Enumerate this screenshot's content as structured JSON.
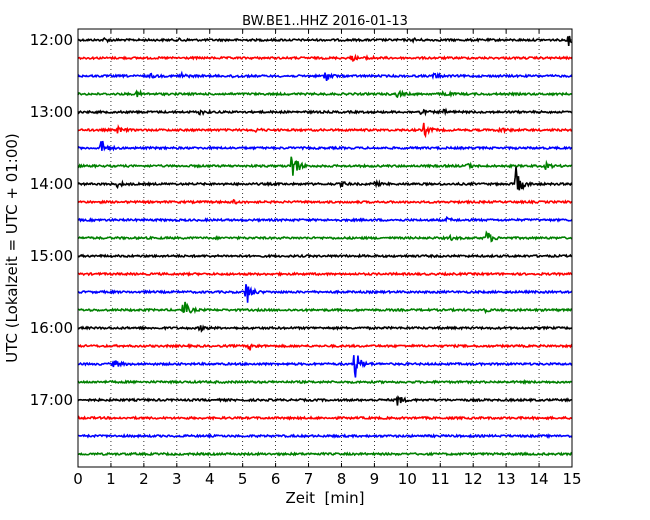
{
  "chart_data": {
    "type": "line",
    "title": "BW.BE1..HHZ 2016-01-13",
    "xlabel": "Zeit  [min]",
    "ylabel": "UTC (Lokalzeit = UTC + 01:00)",
    "xlim": [
      0,
      15
    ],
    "xticks": [
      0,
      1,
      2,
      3,
      4,
      5,
      6,
      7,
      8,
      9,
      10,
      11,
      12,
      13,
      14,
      15
    ],
    "ytick_labels": [
      "12:00",
      "13:00",
      "14:00",
      "15:00",
      "16:00",
      "17:00"
    ],
    "grid": "vertical dotted",
    "trace_colors": [
      "#000000",
      "#ff0000",
      "#0000ff",
      "#008000"
    ],
    "traces": [
      {
        "start": "12:00",
        "events": [
          {
            "t": 0.8,
            "amp": 0.3
          },
          {
            "t": 3.1,
            "amp": 0.25
          },
          {
            "t": 10.2,
            "amp": 0.25
          },
          {
            "t": 14.9,
            "amp": 0.9
          }
        ]
      },
      {
        "start": "12:15",
        "events": [
          {
            "t": 8.3,
            "amp": 0.5
          },
          {
            "t": 8.8,
            "amp": 0.4
          }
        ]
      },
      {
        "start": "12:30",
        "events": [
          {
            "t": 2.2,
            "amp": 0.3
          },
          {
            "t": 3.1,
            "amp": 0.6
          },
          {
            "t": 4.7,
            "amp": 0.3
          },
          {
            "t": 7.5,
            "amp": 1.1
          },
          {
            "t": 10.8,
            "amp": 0.5
          }
        ]
      },
      {
        "start": "12:45",
        "events": [
          {
            "t": 1.8,
            "amp": 0.5
          },
          {
            "t": 9.7,
            "amp": 0.6
          },
          {
            "t": 11.1,
            "amp": 0.4
          }
        ]
      },
      {
        "start": "13:00",
        "events": [
          {
            "t": 3.7,
            "amp": 0.4
          },
          {
            "t": 10.4,
            "amp": 0.4
          },
          {
            "t": 11.1,
            "amp": 0.3
          }
        ]
      },
      {
        "start": "13:15",
        "events": [
          {
            "t": 1.2,
            "amp": 0.5
          },
          {
            "t": 5.4,
            "amp": 0.3
          },
          {
            "t": 10.5,
            "amp": 1.2
          },
          {
            "t": 12.8,
            "amp": 0.5
          }
        ]
      },
      {
        "start": "13:30",
        "events": [
          {
            "t": 0.7,
            "amp": 1.6
          }
        ]
      },
      {
        "start": "13:45",
        "events": [
          {
            "t": 6.5,
            "amp": 3.5
          },
          {
            "t": 11.8,
            "amp": 0.4
          },
          {
            "t": 14.2,
            "amp": 0.5
          }
        ]
      },
      {
        "start": "14:00",
        "events": [
          {
            "t": 1.2,
            "amp": 0.5
          },
          {
            "t": 8.0,
            "amp": 0.4
          },
          {
            "t": 9.0,
            "amp": 0.4
          },
          {
            "t": 13.3,
            "amp": 3.0
          }
        ]
      },
      {
        "start": "14:15",
        "events": [
          {
            "t": 4.7,
            "amp": 0.3
          }
        ]
      },
      {
        "start": "14:30",
        "events": [
          {
            "t": 11.2,
            "amp": 0.3
          }
        ]
      },
      {
        "start": "14:45",
        "events": [
          {
            "t": 11.3,
            "amp": 0.3
          },
          {
            "t": 12.4,
            "amp": 1.5
          }
        ]
      },
      {
        "start": "15:00",
        "events": []
      },
      {
        "start": "15:15",
        "events": []
      },
      {
        "start": "15:30",
        "events": [
          {
            "t": 5.1,
            "amp": 2.5
          }
        ]
      },
      {
        "start": "15:45",
        "events": [
          {
            "t": 3.2,
            "amp": 1.8
          },
          {
            "t": 12.3,
            "amp": 0.4
          }
        ]
      },
      {
        "start": "16:00",
        "events": [
          {
            "t": 3.7,
            "amp": 0.5
          }
        ]
      },
      {
        "start": "16:15",
        "events": [
          {
            "t": 5.2,
            "amp": 0.7
          }
        ]
      },
      {
        "start": "16:30",
        "events": [
          {
            "t": 1.1,
            "amp": 0.8
          },
          {
            "t": 8.4,
            "amp": 3.0
          }
        ]
      },
      {
        "start": "16:45",
        "events": []
      },
      {
        "start": "17:00",
        "events": [
          {
            "t": 9.7,
            "amp": 1.0
          }
        ]
      },
      {
        "start": "17:15",
        "events": []
      },
      {
        "start": "17:30",
        "events": []
      },
      {
        "start": "17:45",
        "events": []
      }
    ]
  }
}
